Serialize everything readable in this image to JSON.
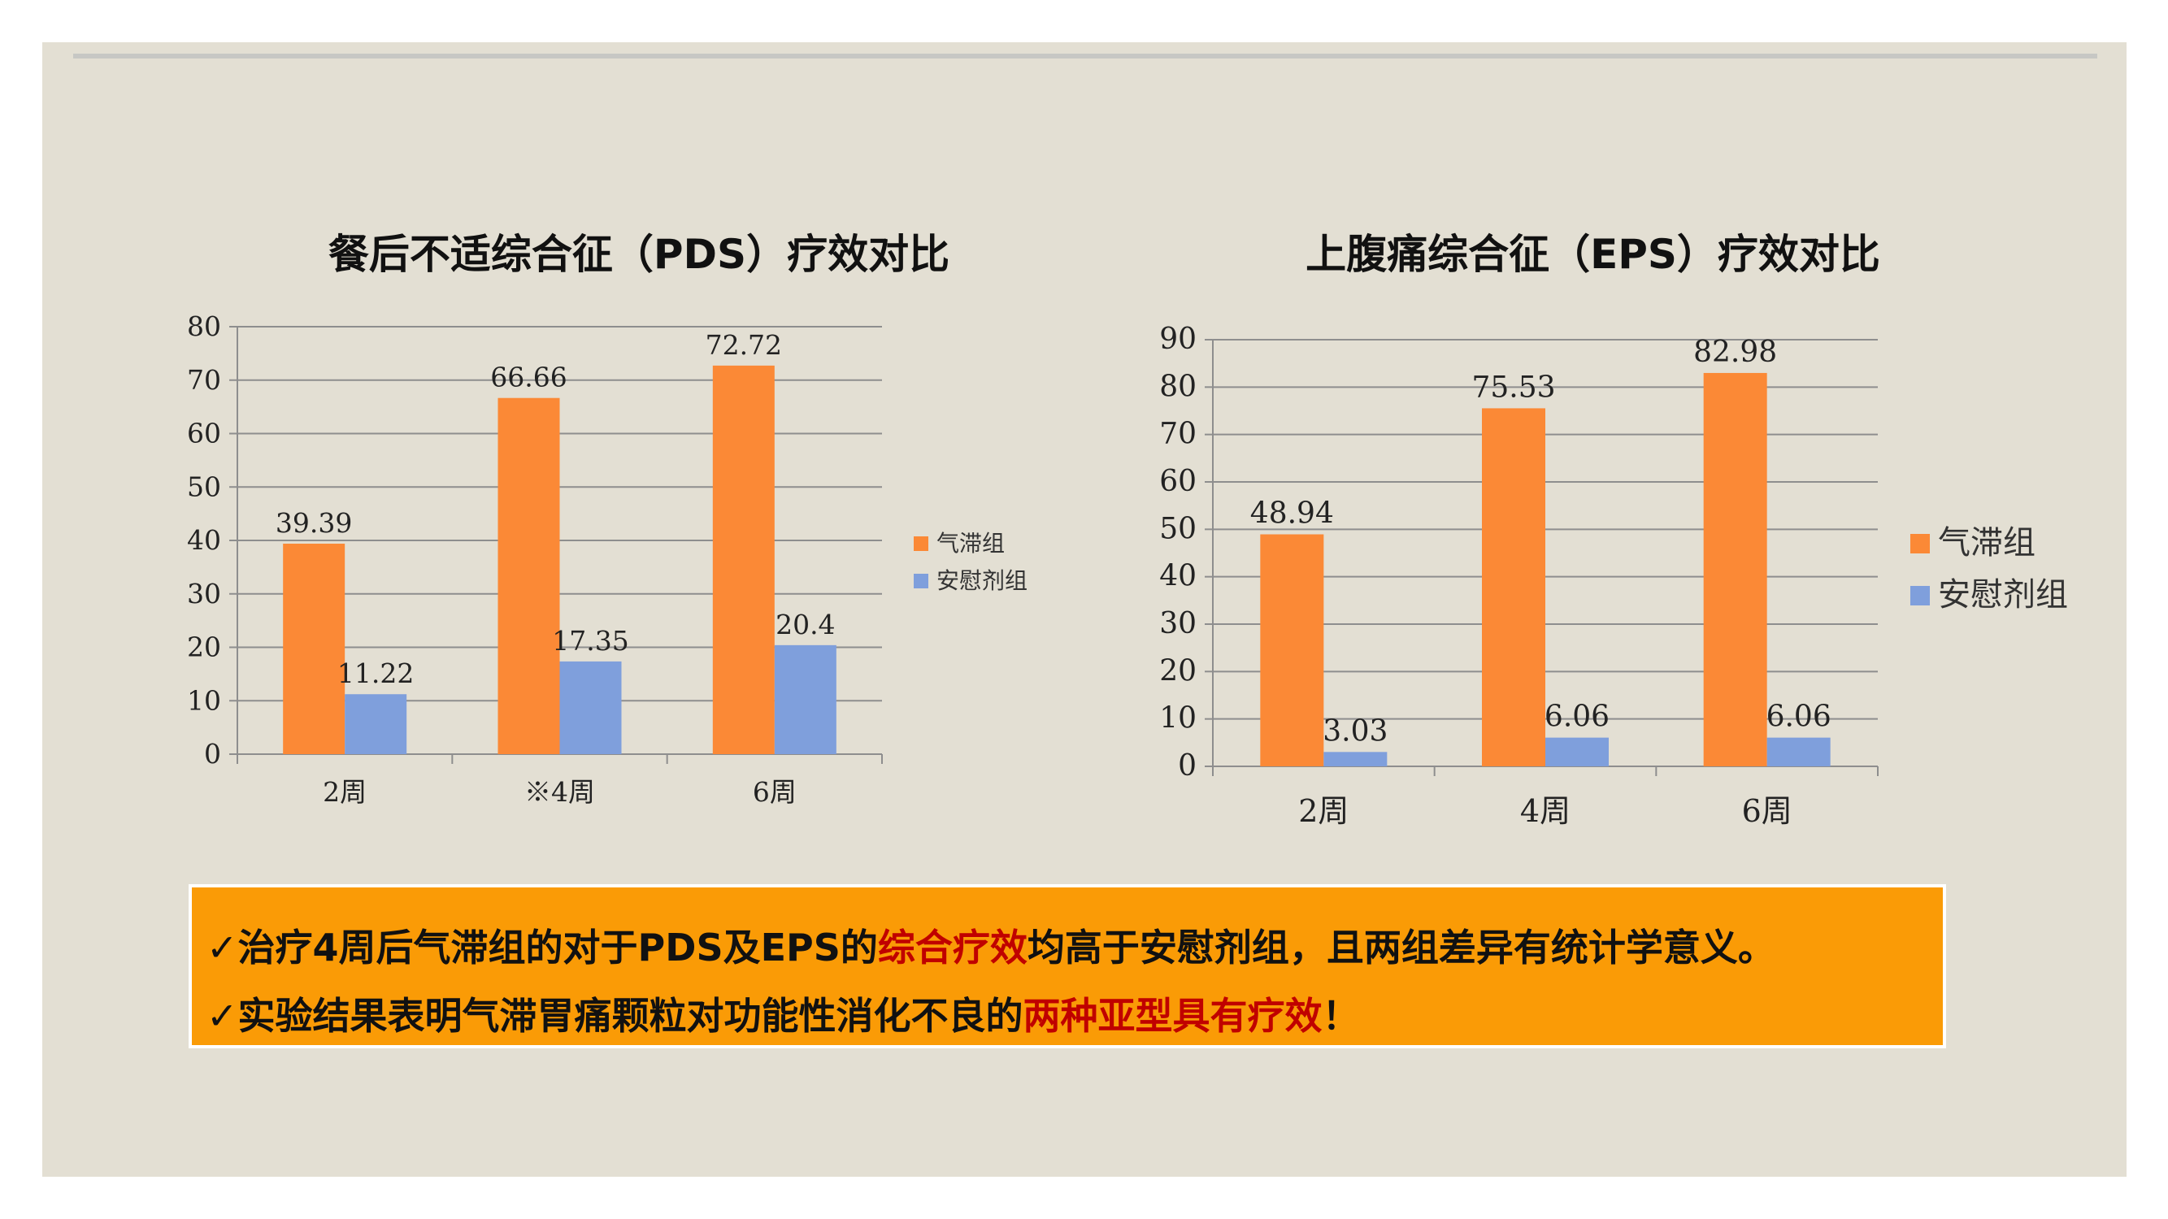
{
  "colors": {
    "background": "#e3dfd3",
    "orange_series": "#fb8936",
    "blue_series": "#7f9fdc",
    "grid": "#8e8e8e",
    "note_box": "#fa9b06",
    "highlight": "#c00000"
  },
  "chart_data": [
    {
      "type": "bar",
      "title": "餐后不适综合征（PDS）疗效对比",
      "categories": [
        "2周",
        "※4周",
        "6周"
      ],
      "series": [
        {
          "name": "气滞组",
          "values": [
            39.39,
            66.66,
            72.72
          ],
          "color": "#fb8936"
        },
        {
          "name": "安慰剂组",
          "values": [
            11.22,
            17.35,
            20.4
          ],
          "color": "#7f9fdc"
        }
      ],
      "data_labels": [
        [
          "39.39",
          "66.66",
          "72.72"
        ],
        [
          "11.22",
          "17.35",
          "20.4"
        ]
      ],
      "ylim": [
        0,
        80
      ],
      "yticks": [
        "0",
        "10",
        "20",
        "30",
        "40",
        "50",
        "60",
        "70",
        "80"
      ],
      "xlabel": "",
      "ylabel": "",
      "grid": true,
      "legend": "right"
    },
    {
      "type": "bar",
      "title": "上腹痛综合征（EPS）疗效对比",
      "categories": [
        "2周",
        "4周",
        "6周"
      ],
      "series": [
        {
          "name": "气滞组",
          "values": [
            48.94,
            75.53,
            82.98
          ],
          "color": "#fb8936"
        },
        {
          "name": "安慰剂组",
          "values": [
            3.03,
            6.06,
            6.06
          ],
          "color": "#7f9fdc"
        }
      ],
      "data_labels": [
        [
          "48.94",
          "75.53",
          "82.98"
        ],
        [
          "3.03",
          "6.06",
          "6.06"
        ]
      ],
      "ylim": [
        0,
        90
      ],
      "yticks": [
        "0",
        "10",
        "20",
        "30",
        "40",
        "50",
        "60",
        "70",
        "80",
        "90"
      ],
      "xlabel": "",
      "ylabel": "",
      "grid": true,
      "legend": "right"
    }
  ],
  "notes": {
    "line1": {
      "check": "✓",
      "before": "治疗4周后气滞组的对于PDS及EPS的",
      "highlight": "综合疗效",
      "after": "均高于安慰剂组，且两组差异有统计学意义。"
    },
    "line2": {
      "check": "✓",
      "before": "实验结果表明气滞胃痛颗粒对功能性消化不良的",
      "highlight": "两种亚型具有疗效",
      "after": "！"
    }
  }
}
